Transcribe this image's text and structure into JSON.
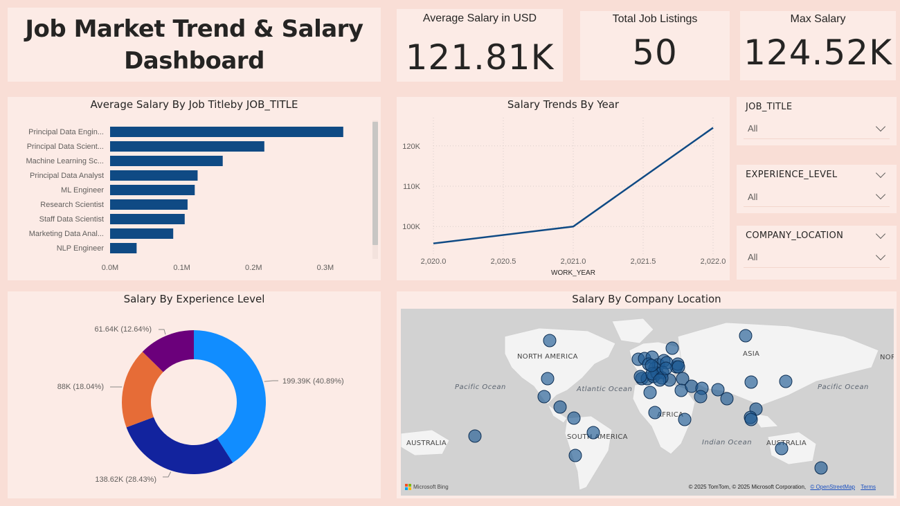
{
  "dashboard": {
    "title_line1": "Job Market Trend & Salary",
    "title_line2": "Dashboard"
  },
  "kpis": [
    {
      "label": "Average Salary in USD",
      "value": "121.81K"
    },
    {
      "label": "Total Job Listings",
      "value": "50"
    },
    {
      "label": "Max Salary",
      "value": "124.52K"
    }
  ],
  "slicers": [
    {
      "title": "JOB_TITLE",
      "value": "All"
    },
    {
      "title": "EXPERIENCE_LEVEL",
      "value": "All"
    },
    {
      "title": "COMPANY_LOCATION",
      "value": "All"
    }
  ],
  "chart_data": [
    {
      "type": "bar",
      "orientation": "horizontal",
      "title": "Average Salary By Job Titleby JOB_TITLE",
      "categories": [
        "Principal Data Engin...",
        "Principal Data Scient...",
        "Machine Learning Sc...",
        "Principal Data Analyst",
        "ML Engineer",
        "Research Scientist",
        "Staff Data Scientist",
        "Marketing Data Anal...",
        "NLP Engineer"
      ],
      "values": [
        325000,
        215000,
        157000,
        122000,
        118000,
        108000,
        104000,
        88000,
        37000
      ],
      "xlim": [
        0,
        330000
      ],
      "tick_labels": [
        "0.0M",
        "0.1M",
        "0.2M",
        "0.3M"
      ],
      "tick_values": [
        0,
        100000,
        200000,
        300000
      ],
      "color": "#0f4a84"
    },
    {
      "type": "line",
      "title": "Salary Trends By Year",
      "xlabel": "WORK_YEAR",
      "x": [
        2020,
        2021,
        2022
      ],
      "values": [
        95800,
        100000,
        124500
      ],
      "xlim": [
        2020,
        2022
      ],
      "ylim": [
        93000,
        127000
      ],
      "x_tick_labels": [
        "2,020.0",
        "2,020.5",
        "2,021.0",
        "2,021.5",
        "2,022.0"
      ],
      "x_tick_values": [
        2020,
        2020.5,
        2021,
        2021.5,
        2022
      ],
      "y_tick_labels": [
        "100K",
        "110K",
        "120K"
      ],
      "y_tick_values": [
        100000,
        110000,
        120000
      ],
      "color": "#0f4a84"
    },
    {
      "type": "pie",
      "donut": true,
      "title": "Salary By Experience Level",
      "values": [
        199390,
        138620,
        88000,
        61640
      ],
      "labels": [
        "199.39K (40.89%)",
        "138.62K (28.43%)",
        "88K (18.04%)",
        "61.64K (12.64%)"
      ],
      "colors": [
        "#118dff",
        "#12239e",
        "#e66c37",
        "#6b007b"
      ]
    }
  ],
  "map": {
    "title": "Salary By Company Location",
    "continents": [
      "NORTH AMERICA",
      "ASIA",
      "NOR",
      "AFRICA",
      "SOUTH AMERICA",
      "AUSTRALIA",
      "AUSTRALIA"
    ],
    "oceans": [
      "Pacific Ocean",
      "Atlantic Ocean",
      "Pacific Ocean",
      "Indian Ocean"
    ],
    "copyright": "© 2025 TomTom, © 2025 Microsoft Corporation,",
    "osm_link": "© OpenStreetMap",
    "terms_link": "Terms",
    "bing_label": "Microsoft Bing",
    "bubble_color": "#1f5a94"
  }
}
